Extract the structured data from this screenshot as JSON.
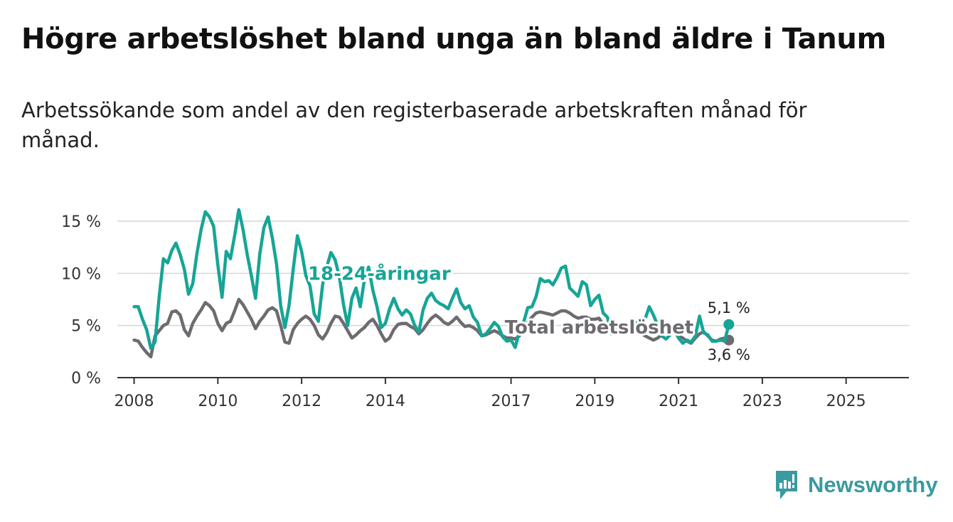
{
  "title": "Högre arbetslöshet bland unga än bland äldre i Tanum",
  "subtitle": "Arbetssökande som andel av den registerbaserade arbetskraften månad för månad.",
  "brand": "Newsworthy",
  "colors": {
    "young": "#16a596",
    "total": "#6e6b70",
    "grid": "#d6d6d6",
    "axis": "#333333",
    "brand": "#3a9aa0"
  },
  "chart_data": {
    "type": "line",
    "title": "Högre arbetslöshet bland unga än bland äldre i Tanum",
    "xlabel": "",
    "ylabel": "",
    "ylim": [
      0,
      15
    ],
    "xlim": [
      2007.6,
      2026.5
    ],
    "x_ticks": [
      {
        "value": 2008,
        "label": "2008"
      },
      {
        "value": 2010,
        "label": "2010"
      },
      {
        "value": 2012,
        "label": "2012"
      },
      {
        "value": 2014,
        "label": "2014"
      },
      {
        "value": 2017,
        "label": "2017"
      },
      {
        "value": 2019,
        "label": "2019"
      },
      {
        "value": 2021,
        "label": "2021"
      },
      {
        "value": 2023,
        "label": "2023"
      },
      {
        "value": 2025,
        "label": "2025"
      }
    ],
    "y_ticks": [
      {
        "value": 0,
        "label": "0 %"
      },
      {
        "value": 5,
        "label": "5 %"
      },
      {
        "value": 10,
        "label": "10 %"
      },
      {
        "value": 15,
        "label": "15 %"
      }
    ],
    "grid": true,
    "series": [
      {
        "name": "18-24-åringar",
        "x_start": 2008.0,
        "step": 0.1,
        "values": [
          6.8,
          6.8,
          5.6,
          4.6,
          2.8,
          3.4,
          7.8,
          11.4,
          11.0,
          12.2,
          12.9,
          11.8,
          10.4,
          8.0,
          9.0,
          11.9,
          14.2,
          15.9,
          15.4,
          14.5,
          10.8,
          7.7,
          12.1,
          11.4,
          13.6,
          16.1,
          14.2,
          11.8,
          9.8,
          7.6,
          11.8,
          14.4,
          15.4,
          13.4,
          10.9,
          6.9,
          4.8,
          6.9,
          10.4,
          13.6,
          12.1,
          9.8,
          8.8,
          6.1,
          5.4,
          8.9,
          10.6,
          12.0,
          11.3,
          9.7,
          7.0,
          5.0,
          7.6,
          8.6,
          6.8,
          9.4,
          10.6,
          8.4,
          6.8,
          4.8,
          5.2,
          6.6,
          7.6,
          6.6,
          6.0,
          6.5,
          6.1,
          5.0,
          4.4,
          6.5,
          7.6,
          8.1,
          7.4,
          7.1,
          6.9,
          6.6,
          7.6,
          8.5,
          7.2,
          6.6,
          6.9,
          5.8,
          5.3,
          4.0,
          4.2,
          4.7,
          5.3,
          4.9,
          3.9,
          3.5,
          3.6,
          2.9,
          4.4,
          5.3,
          6.7,
          6.8,
          7.8,
          9.5,
          9.2,
          9.3,
          8.9,
          9.6,
          10.5,
          10.7,
          8.6,
          8.2,
          7.8,
          9.2,
          8.9,
          6.9,
          7.5,
          7.9,
          6.2,
          5.8,
          4.2,
          5.2,
          5.1,
          4.8,
          5.1,
          4.9,
          5.3,
          4.8,
          5.6,
          6.8,
          6.0,
          5.0,
          4.0,
          3.7,
          4.1,
          4.6,
          3.8,
          3.3,
          3.6,
          3.4,
          4.0,
          5.9,
          4.3,
          4.1,
          3.5,
          3.5,
          3.6,
          3.5,
          5.1
        ]
      },
      {
        "name": "Total arbetslöshet",
        "x_start": 2008.0,
        "step": 0.1,
        "values": [
          3.6,
          3.5,
          2.9,
          2.4,
          2.0,
          4.0,
          4.5,
          5.0,
          5.2,
          6.3,
          6.4,
          6.0,
          4.6,
          4.0,
          5.2,
          5.9,
          6.5,
          7.2,
          6.9,
          6.4,
          5.2,
          4.5,
          5.2,
          5.4,
          6.4,
          7.5,
          7.0,
          6.3,
          5.6,
          4.7,
          5.4,
          5.9,
          6.5,
          6.7,
          6.4,
          5.0,
          3.4,
          3.3,
          4.6,
          5.2,
          5.6,
          5.9,
          5.6,
          5.0,
          4.1,
          3.7,
          4.3,
          5.2,
          5.9,
          5.8,
          5.2,
          4.5,
          3.8,
          4.1,
          4.5,
          4.8,
          5.3,
          5.6,
          5.0,
          4.2,
          3.5,
          3.8,
          4.6,
          5.1,
          5.2,
          5.2,
          4.9,
          4.7,
          4.2,
          4.6,
          5.2,
          5.7,
          6.0,
          5.7,
          5.3,
          5.1,
          5.4,
          5.8,
          5.3,
          4.9,
          5.0,
          4.8,
          4.5,
          4.0,
          4.1,
          4.3,
          4.5,
          4.3,
          4.0,
          3.8,
          3.8,
          3.7,
          4.0,
          4.6,
          5.3,
          5.8,
          6.2,
          6.3,
          6.2,
          6.1,
          6.0,
          6.2,
          6.4,
          6.4,
          6.2,
          5.9,
          5.7,
          5.8,
          5.8,
          5.6,
          5.6,
          5.7,
          5.1,
          4.5,
          4.3,
          4.5,
          4.6,
          4.6,
          4.8,
          4.7,
          4.6,
          4.3,
          4.0,
          3.8,
          3.6,
          3.8,
          4.1,
          4.3,
          4.5,
          4.3,
          4.0,
          3.8,
          3.5,
          3.3,
          3.8,
          4.2,
          4.4,
          4.0,
          3.6,
          3.5,
          3.7,
          3.8,
          3.6
        ]
      }
    ],
    "annotations": [
      {
        "text": "18-24-åringar",
        "series": 0
      },
      {
        "text": "Total arbetslöshet",
        "series": 1
      },
      {
        "text": "5,1 %",
        "series": 0,
        "position": "end-above"
      },
      {
        "text": "3,6 %",
        "series": 1,
        "position": "end-below"
      }
    ]
  }
}
